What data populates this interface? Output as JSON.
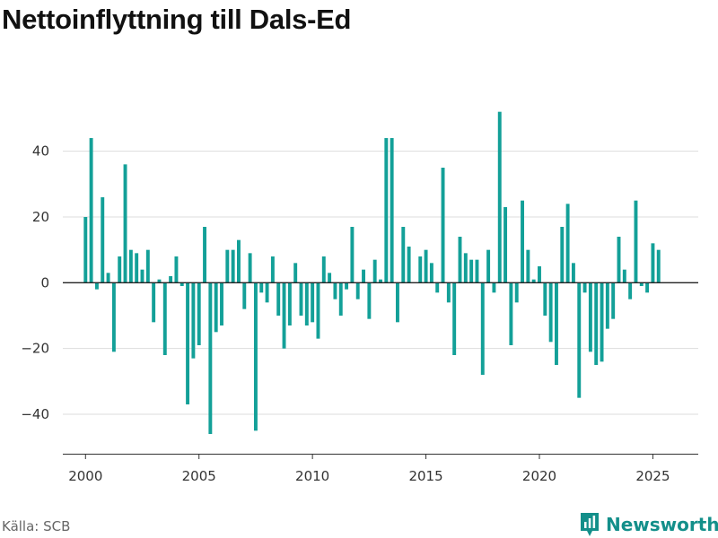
{
  "chart_data": {
    "type": "bar",
    "title": "Nettoinflyttning till Dals-Ed",
    "xlabel": "",
    "ylabel": "",
    "ylim": [
      -52,
      62
    ],
    "xlim": [
      1999.0,
      2027.0
    ],
    "yticks": [
      -40,
      -20,
      0,
      20,
      40
    ],
    "xticks": [
      2000,
      2005,
      2010,
      2015,
      2020,
      2025
    ],
    "bar_color": "#13a098",
    "grid": true,
    "x": [
      2000.0,
      2000.25,
      2000.5,
      2000.75,
      2001.0,
      2001.25,
      2001.5,
      2001.75,
      2002.0,
      2002.25,
      2002.5,
      2002.75,
      2003.0,
      2003.25,
      2003.5,
      2003.75,
      2004.0,
      2004.25,
      2004.5,
      2004.75,
      2005.0,
      2005.25,
      2005.5,
      2005.75,
      2006.0,
      2006.25,
      2006.5,
      2006.75,
      2007.0,
      2007.25,
      2007.5,
      2007.75,
      2008.0,
      2008.25,
      2008.5,
      2008.75,
      2009.0,
      2009.25,
      2009.5,
      2009.75,
      2010.0,
      2010.25,
      2010.5,
      2010.75,
      2011.0,
      2011.25,
      2011.5,
      2011.75,
      2012.0,
      2012.25,
      2012.5,
      2012.75,
      2013.0,
      2013.25,
      2013.5,
      2013.75,
      2014.0,
      2014.25,
      2014.5,
      2014.75,
      2015.0,
      2015.25,
      2015.5,
      2015.75,
      2016.0,
      2016.25,
      2016.5,
      2016.75,
      2017.0,
      2017.25,
      2017.5,
      2017.75,
      2018.0,
      2018.25,
      2018.5,
      2018.75,
      2019.0,
      2019.25,
      2019.5,
      2019.75,
      2020.0,
      2020.25,
      2020.5,
      2020.75,
      2021.0,
      2021.25,
      2021.5,
      2021.75,
      2022.0,
      2022.25,
      2022.5,
      2022.75,
      2023.0,
      2023.25,
      2023.5,
      2023.75,
      2024.0,
      2024.25,
      2024.5,
      2024.75,
      2025.0,
      2025.25
    ],
    "values": [
      20,
      44,
      -2,
      26,
      3,
      -21,
      8,
      36,
      10,
      9,
      4,
      10,
      -12,
      1,
      -22,
      2,
      8,
      -1,
      -37,
      -23,
      -19,
      17,
      -46,
      -15,
      -13,
      10,
      10,
      13,
      -8,
      9,
      -45,
      -3,
      -6,
      8,
      -10,
      -20,
      -13,
      6,
      -10,
      -13,
      -12,
      -17,
      8,
      3,
      -5,
      -10,
      -2,
      17,
      -5,
      4,
      -11,
      7,
      1,
      44,
      44,
      -12,
      17,
      11,
      0,
      8,
      10,
      6,
      -3,
      35,
      -6,
      -22,
      14,
      9,
      7,
      7,
      -28,
      10,
      -3,
      52,
      23,
      -19,
      -6,
      25,
      10,
      1,
      5,
      -10,
      -18,
      -25,
      17,
      24,
      6,
      -35,
      -3,
      -21,
      -25,
      -24,
      -14,
      -11,
      14,
      4,
      -5,
      25,
      -1,
      -3,
      12,
      10
    ]
  },
  "source": "Källa: SCB",
  "brand": {
    "name": "Newsworthy",
    "color": "#138f8a",
    "icon": "newsworthy-logo-icon"
  }
}
